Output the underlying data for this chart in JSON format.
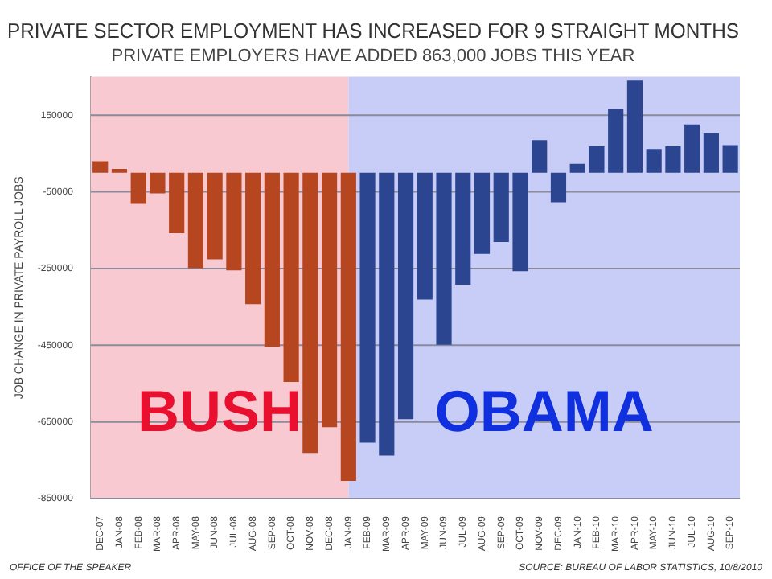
{
  "chart_data": {
    "type": "bar",
    "title": "PRIVATE SECTOR EMPLOYMENT HAS INCREASED FOR 9 STRAIGHT MONTHS",
    "subtitle": "PRIVATE EMPLOYERS HAVE ADDED 863,000 JOBS THIS YEAR",
    "ylabel": "JOB CHANGE IN PRIVATE PAYROLL JOBS",
    "categories": [
      "DEC-07",
      "JAN-08",
      "FEB-08",
      "MAR-08",
      "APR-08",
      "MAY-08",
      "JUN-08",
      "JUL-08",
      "AUG-08",
      "SEP-08",
      "OCT-08",
      "NOV-08",
      "DEC-08",
      "JAN-09",
      "FEB-09",
      "MAR-09",
      "APR-09",
      "MAY-09",
      "JUN-09",
      "JUL-09",
      "AUG-09",
      "SEP-09",
      "OCT-09",
      "NOV-09",
      "DEC-09",
      "JAN-10",
      "FEB-10",
      "MAR-10",
      "APR-10",
      "MAY-10",
      "JUN-10",
      "JUL-10",
      "AUG-10",
      "SEP-10"
    ],
    "values": [
      30000,
      10000,
      -81000,
      -54000,
      -158000,
      -249000,
      -226000,
      -255000,
      -343000,
      -454000,
      -546000,
      -731000,
      -664000,
      -804000,
      -704000,
      -738000,
      -643000,
      -331000,
      -449000,
      -292000,
      -212000,
      -181000,
      -257000,
      85000,
      -77000,
      23000,
      69000,
      166000,
      240000,
      62000,
      69000,
      126000,
      103000,
      72000
    ],
    "colors": [
      "#b5461f",
      "#b5461f",
      "#b5461f",
      "#b5461f",
      "#b5461f",
      "#b5461f",
      "#b5461f",
      "#b5461f",
      "#b5461f",
      "#b5461f",
      "#b5461f",
      "#b5461f",
      "#b5461f",
      "#b5461f",
      "#2b4591",
      "#2b4591",
      "#2b4591",
      "#2b4591",
      "#2b4591",
      "#2b4591",
      "#2b4591",
      "#2b4591",
      "#2b4591",
      "#2b4591",
      "#2b4591",
      "#2b4591",
      "#2b4591",
      "#2b4591",
      "#2b4591",
      "#2b4591",
      "#2b4591",
      "#2b4591",
      "#2b4591",
      "#2b4591"
    ],
    "ylim": [
      -850000,
      250000
    ],
    "yticks": [
      150000,
      -50000,
      -250000,
      -450000,
      -650000,
      -850000
    ],
    "grid": "y",
    "legend": false,
    "bands": [
      {
        "axis": "x",
        "from": "DEC-07",
        "to": "JAN-09",
        "label": "BUSH",
        "color": "#f9c9d2"
      },
      {
        "axis": "x",
        "from": "JAN-09",
        "to": "SEP-10",
        "label": "OBAMA",
        "color": "#c8cdf7"
      }
    ],
    "annotations": [
      "OFFICE OF THE SPEAKER",
      "SOURCE: BUREAU OF LABOR STATISTICS, 10/8/2010"
    ]
  }
}
